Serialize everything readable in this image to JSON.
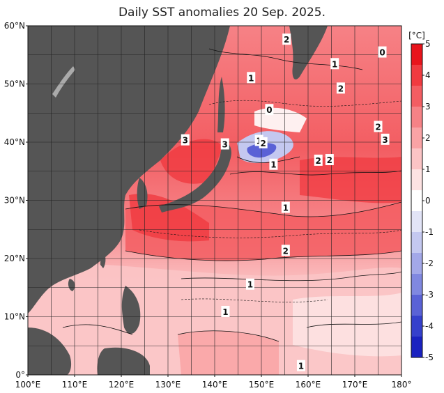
{
  "title": "Daily SST anomalies 20 Sep. 2025.",
  "map": {
    "lon_range": [
      100,
      180
    ],
    "lat_range": [
      0,
      60
    ],
    "lat_ticks": [
      "60°N",
      "50°N",
      "40°N",
      "30°N",
      "20°N",
      "10°N",
      "0°"
    ],
    "lon_ticks": [
      "100°E",
      "110°E",
      "120°E",
      "130°E",
      "140°E",
      "150°E",
      "160°E",
      "170°E",
      "180°"
    ],
    "land_color": "#555555",
    "grid_color": "#222222"
  },
  "colorbar": {
    "unit": "[°C]",
    "labels": [
      "5",
      "4",
      "3",
      "2",
      "1",
      "0",
      "-1",
      "-2",
      "-3",
      "-4",
      "-5"
    ],
    "colors": [
      "#e8141c",
      "#f03a40",
      "#f35d62",
      "#f68286",
      "#f9a3a5",
      "#fbc4c5",
      "#fde2e2",
      "#ffffff",
      "#e2e4f7",
      "#c4c8f0",
      "#a3a8e8",
      "#8088e0",
      "#5a62d6",
      "#3540cc",
      "#1a22c0"
    ]
  },
  "contour_labels": [
    {
      "text": "2",
      "lon": 155.4,
      "lat": 57.7
    },
    {
      "text": "0",
      "lon": 175.9,
      "lat": 55.5
    },
    {
      "text": "1",
      "lon": 165.7,
      "lat": 53.5
    },
    {
      "text": "1",
      "lon": 147.8,
      "lat": 51.1
    },
    {
      "text": "2",
      "lon": 167.0,
      "lat": 49.3
    },
    {
      "text": "0",
      "lon": 151.7,
      "lat": 45.6
    },
    {
      "text": "2",
      "lon": 175.0,
      "lat": 42.7
    },
    {
      "text": "3",
      "lon": 176.5,
      "lat": 40.5
    },
    {
      "text": "3",
      "lon": 133.7,
      "lat": 40.4
    },
    {
      "text": "3",
      "lon": 142.2,
      "lat": 39.7
    },
    {
      "text": "1",
      "lon": 149.5,
      "lat": 40.3
    },
    {
      "text": "2",
      "lon": 150.4,
      "lat": 39.9
    },
    {
      "text": "2",
      "lon": 162.2,
      "lat": 36.9
    },
    {
      "text": "2",
      "lon": 164.6,
      "lat": 37.0
    },
    {
      "text": "1",
      "lon": 152.6,
      "lat": 36.2
    },
    {
      "text": "1",
      "lon": 155.2,
      "lat": 28.8
    },
    {
      "text": "2",
      "lon": 155.2,
      "lat": 21.4
    },
    {
      "text": "1",
      "lon": 147.6,
      "lat": 15.6
    },
    {
      "text": "1",
      "lon": 142.3,
      "lat": 10.9
    },
    {
      "text": "1",
      "lon": 158.5,
      "lat": 1.6
    }
  ]
}
